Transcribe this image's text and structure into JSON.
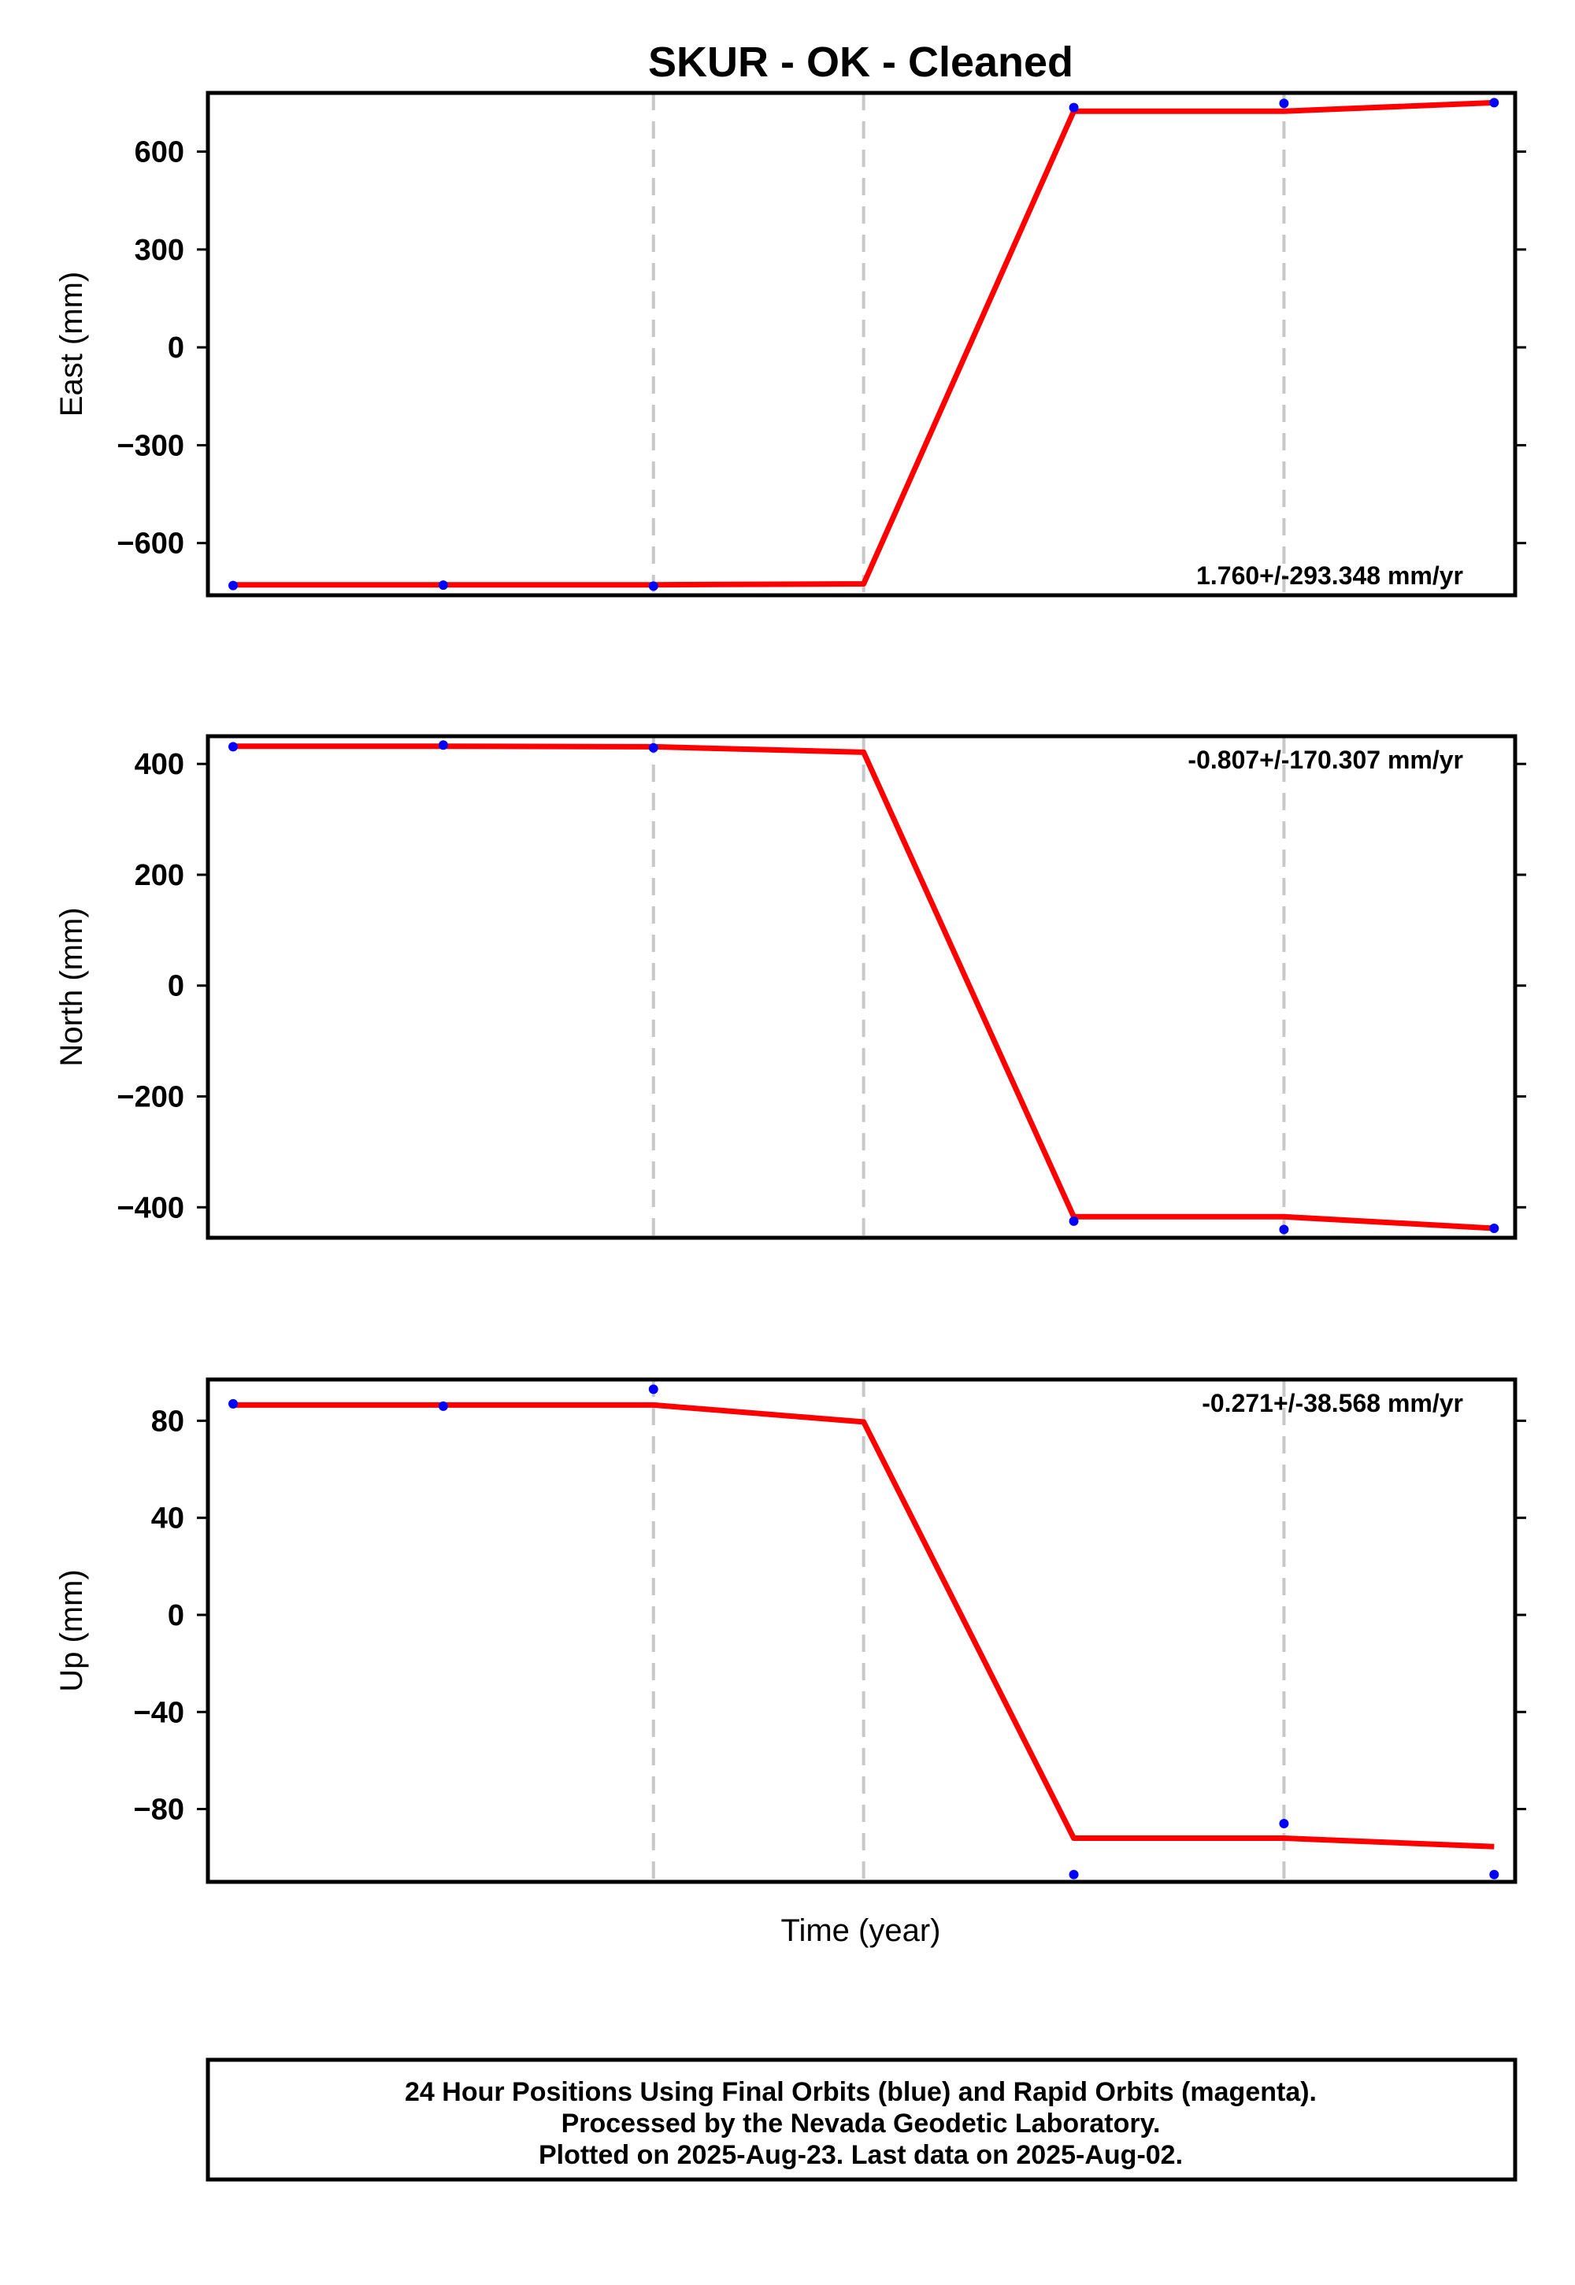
{
  "title": "SKUR  - OK - Cleaned",
  "xlabel": "Time (year)",
  "footer": {
    "line1": "24 Hour Positions Using Final Orbits (blue) and Rapid Orbits (magenta).",
    "line2": "Processed by the Nevada Geodetic Laboratory.",
    "line3": "Plotted on 2025-Aug-23. Last data on 2025-Aug-02."
  },
  "colors": {
    "data_points": "#0000ff",
    "model_line": "#ff0000",
    "event_lines": "#c8c8c8",
    "frame": "#000000"
  },
  "chart_data": [
    {
      "type": "scatter",
      "name": "east",
      "ylabel": "East (mm)",
      "rate": "1.760+/-293.348 mm/yr",
      "rate_position": "bottom-right",
      "ylim": [
        -760,
        780
      ],
      "yticks": [
        -600,
        -300,
        0,
        300,
        600
      ],
      "ytick_labels": [
        "−600",
        "−300",
        "0",
        "300",
        "600"
      ],
      "points": [
        [
          1,
          -730
        ],
        [
          2,
          -729
        ],
        [
          3,
          -732
        ],
        [
          5,
          735
        ],
        [
          6,
          748
        ],
        [
          7,
          750
        ]
      ],
      "model": [
        [
          1,
          -728
        ],
        [
          2,
          -728
        ],
        [
          3,
          -728
        ],
        [
          4,
          -725
        ],
        [
          5,
          724
        ],
        [
          6,
          724
        ],
        [
          7,
          750
        ]
      ]
    },
    {
      "type": "scatter",
      "name": "north",
      "ylabel": "North (mm)",
      "rate": "-0.807+/-170.307 mm/yr",
      "rate_position": "top-right",
      "ylim": [
        -455,
        450
      ],
      "yticks": [
        -400,
        -200,
        0,
        200,
        400
      ],
      "ytick_labels": [
        "−400",
        "−200",
        "0",
        "200",
        "400"
      ],
      "points": [
        [
          1,
          431
        ],
        [
          2,
          434
        ],
        [
          3,
          429
        ],
        [
          5,
          -425
        ],
        [
          6,
          -440
        ],
        [
          7,
          -438
        ]
      ],
      "model": [
        [
          1,
          432
        ],
        [
          2,
          432
        ],
        [
          3,
          431
        ],
        [
          4,
          421
        ],
        [
          5,
          -417
        ],
        [
          6,
          -417
        ],
        [
          7,
          -438
        ]
      ]
    },
    {
      "type": "scatter",
      "name": "up",
      "ylabel": "Up (mm)",
      "rate": "-0.271+/-38.568 mm/yr",
      "rate_position": "top-right",
      "ylim": [
        -110,
        97
      ],
      "yticks": [
        -80,
        -40,
        0,
        40,
        80
      ],
      "ytick_labels": [
        "−80",
        "−40",
        "0",
        "40",
        "80"
      ],
      "points": [
        [
          1,
          87
        ],
        [
          2,
          86
        ],
        [
          3,
          93
        ],
        [
          5,
          -107
        ],
        [
          6,
          -86
        ],
        [
          7,
          -107
        ]
      ],
      "model": [
        [
          1,
          86.5
        ],
        [
          2,
          86.5
        ],
        [
          3,
          86.5
        ],
        [
          4,
          79.5
        ],
        [
          5,
          -92
        ],
        [
          6,
          -92
        ],
        [
          7,
          -95.5
        ]
      ]
    }
  ],
  "x_event_lines": [
    3,
    4,
    6
  ],
  "xlim": [
    0.88,
    7.1
  ]
}
